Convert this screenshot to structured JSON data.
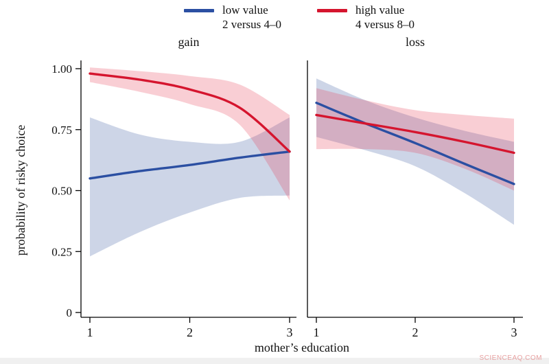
{
  "watermark": "SCIENCEAQ.COM",
  "legend": [
    {
      "line1": "low value",
      "line2": "2 versus 4–0",
      "color": "#2b4fa2"
    },
    {
      "line1": "high value",
      "line2": "4 versus 8–0",
      "color": "#d5152e"
    }
  ],
  "chart_data": {
    "type": "line",
    "title": "",
    "xlabel": "mother’s education",
    "ylabel": "probability of risky choice",
    "xlim": [
      1,
      3
    ],
    "ylim": [
      0,
      1.05
    ],
    "grid": false,
    "legend_position": "top-center",
    "x_ticks": [
      1,
      2,
      3
    ],
    "y_ticks": [
      0,
      0.25,
      0.5,
      0.75,
      1.0
    ],
    "y_tick_labels": [
      "0",
      "0.25",
      "0.50",
      "0.75",
      "1.00"
    ],
    "panels": [
      {
        "title": "gain",
        "series": [
          {
            "name": "low value (2 versus 4–0)",
            "color": "#2b4fa2",
            "band_fill": "rgba(90,115,175,0.30)",
            "x": [
              1,
              1.5,
              2,
              2.5,
              3
            ],
            "y": [
              0.55,
              0.58,
              0.605,
              0.635,
              0.66
            ],
            "band_upper": [
              0.8,
              0.73,
              0.7,
              0.7,
              0.8
            ],
            "band_lower": [
              0.23,
              0.33,
              0.41,
              0.47,
              0.48
            ]
          },
          {
            "name": "high value (4 versus 8–0)",
            "color": "#d5152e",
            "band_fill": "rgba(232,60,85,0.25)",
            "x": [
              1,
              1.5,
              2,
              2.5,
              3
            ],
            "y": [
              0.98,
              0.955,
              0.915,
              0.84,
              0.66
            ],
            "band_upper": [
              1.005,
              0.99,
              0.97,
              0.935,
              0.81
            ],
            "band_lower": [
              0.945,
              0.905,
              0.855,
              0.77,
              0.46
            ]
          }
        ]
      },
      {
        "title": "loss",
        "series": [
          {
            "name": "low value (2 versus 4–0)",
            "color": "#2b4fa2",
            "band_fill": "rgba(90,115,175,0.30)",
            "x": [
              1,
              1.5,
              2,
              2.5,
              3
            ],
            "y": [
              0.86,
              0.775,
              0.695,
              0.61,
              0.527
            ],
            "band_upper": [
              0.96,
              0.87,
              0.8,
              0.745,
              0.7
            ],
            "band_lower": [
              0.72,
              0.665,
              0.6,
              0.49,
              0.36
            ]
          },
          {
            "name": "high value (4 versus 8–0)",
            "color": "#d5152e",
            "band_fill": "rgba(232,60,85,0.25)",
            "x": [
              1,
              1.5,
              2,
              2.5,
              3
            ],
            "y": [
              0.81,
              0.775,
              0.74,
              0.7,
              0.655
            ],
            "band_upper": [
              0.92,
              0.87,
              0.83,
              0.81,
              0.795
            ],
            "band_lower": [
              0.67,
              0.67,
              0.655,
              0.59,
              0.5
            ]
          }
        ]
      }
    ]
  }
}
